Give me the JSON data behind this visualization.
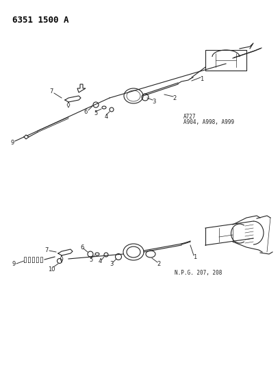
{
  "title": "6351 1500 A",
  "bg_color": "#ffffff",
  "text_color": "#000000",
  "diagram_color": "#222222",
  "top_label": "A727\nA904, A998, A999",
  "bottom_label": "N.P.G. 207, 208",
  "figsize": [
    4.1,
    5.33
  ],
  "dpi": 100
}
